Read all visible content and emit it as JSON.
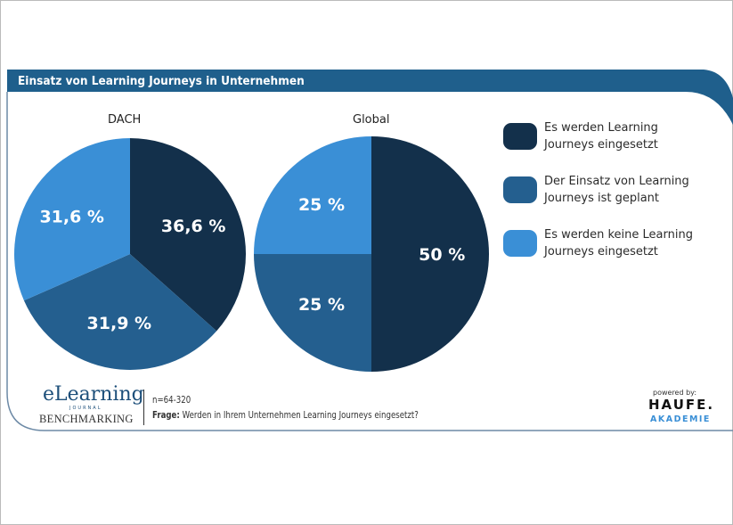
{
  "chart_data": [
    {
      "type": "pie",
      "title": "DACH",
      "categories": [
        "Es werden Learning Journeys eingesetzt",
        "Der Einsatz von Learning Journeys ist geplant",
        "Es werden keine Learning Journeys eingesetzt"
      ],
      "values": [
        36.6,
        31.9,
        31.6
      ],
      "labels": [
        "36,6 %",
        "31,9 %",
        "31,6 %"
      ]
    },
    {
      "type": "pie",
      "title": "Global",
      "categories": [
        "Es werden Learning Journeys eingesetzt",
        "Der Einsatz von Learning Journeys ist geplant",
        "Es werden keine Learning Journeys eingesetzt"
      ],
      "values": [
        50,
        25,
        25
      ],
      "labels": [
        "50 %",
        "25 %",
        "25 %"
      ]
    }
  ],
  "header": {
    "title": "Einsatz von Learning Journeys in Unternehmen"
  },
  "legend": {
    "placement": "right",
    "items": [
      {
        "line1": "Es werden Learning",
        "line2": "Journeys eingesetzt",
        "color": "#13304b"
      },
      {
        "line1": "Der Einsatz von Learning",
        "line2": "Journeys ist geplant",
        "color": "#245f8f"
      },
      {
        "line1": "Es werden keine Learning",
        "line2": "Journeys eingesetzt",
        "color": "#3a8fd6"
      }
    ]
  },
  "colors": {
    "header": "#1f5f8c",
    "slices": [
      "#13304b",
      "#245f8f",
      "#3a8fd6"
    ]
  },
  "footer": {
    "n": "n=64-320",
    "question_label": "Frage:",
    "question": "Werden in Ihrem Unternehmen Learning Journeys eingesetzt?",
    "logo_left": {
      "line1": "eLearning",
      "line2": "BENCHMARKING",
      "small": "JOURNAL"
    },
    "powered_by": "powered by:",
    "logo_right": {
      "line1": "HAUFE.",
      "line2": "AKADEMIE"
    }
  }
}
